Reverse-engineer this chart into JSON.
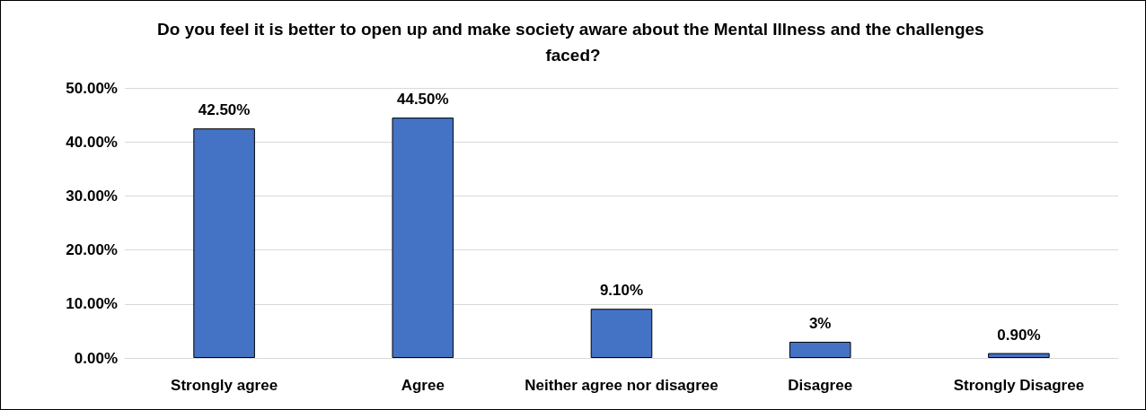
{
  "chart_data": {
    "type": "bar",
    "title": "Do you feel it is better to open up and make society aware about the Mental Illness and the challenges faced?",
    "categories": [
      "Strongly agree",
      "Agree",
      "Neither agree nor disagree",
      "Disagree",
      "Strongly Disagree"
    ],
    "values": [
      42.5,
      44.5,
      9.1,
      3,
      0.9
    ],
    "value_labels": [
      "42.50%",
      "44.50%",
      "9.10%",
      "3%",
      "0.90%"
    ],
    "color": "#4472c4",
    "ylim": [
      0,
      50
    ],
    "yticks": [
      {
        "value": 0,
        "label": "0.00%"
      },
      {
        "value": 10,
        "label": "10.00%"
      },
      {
        "value": 20,
        "label": "20.00%"
      },
      {
        "value": 30,
        "label": "30.00%"
      },
      {
        "value": 40,
        "label": "40.00%"
      },
      {
        "value": 50,
        "label": "50.00%"
      }
    ],
    "grid": "y"
  }
}
